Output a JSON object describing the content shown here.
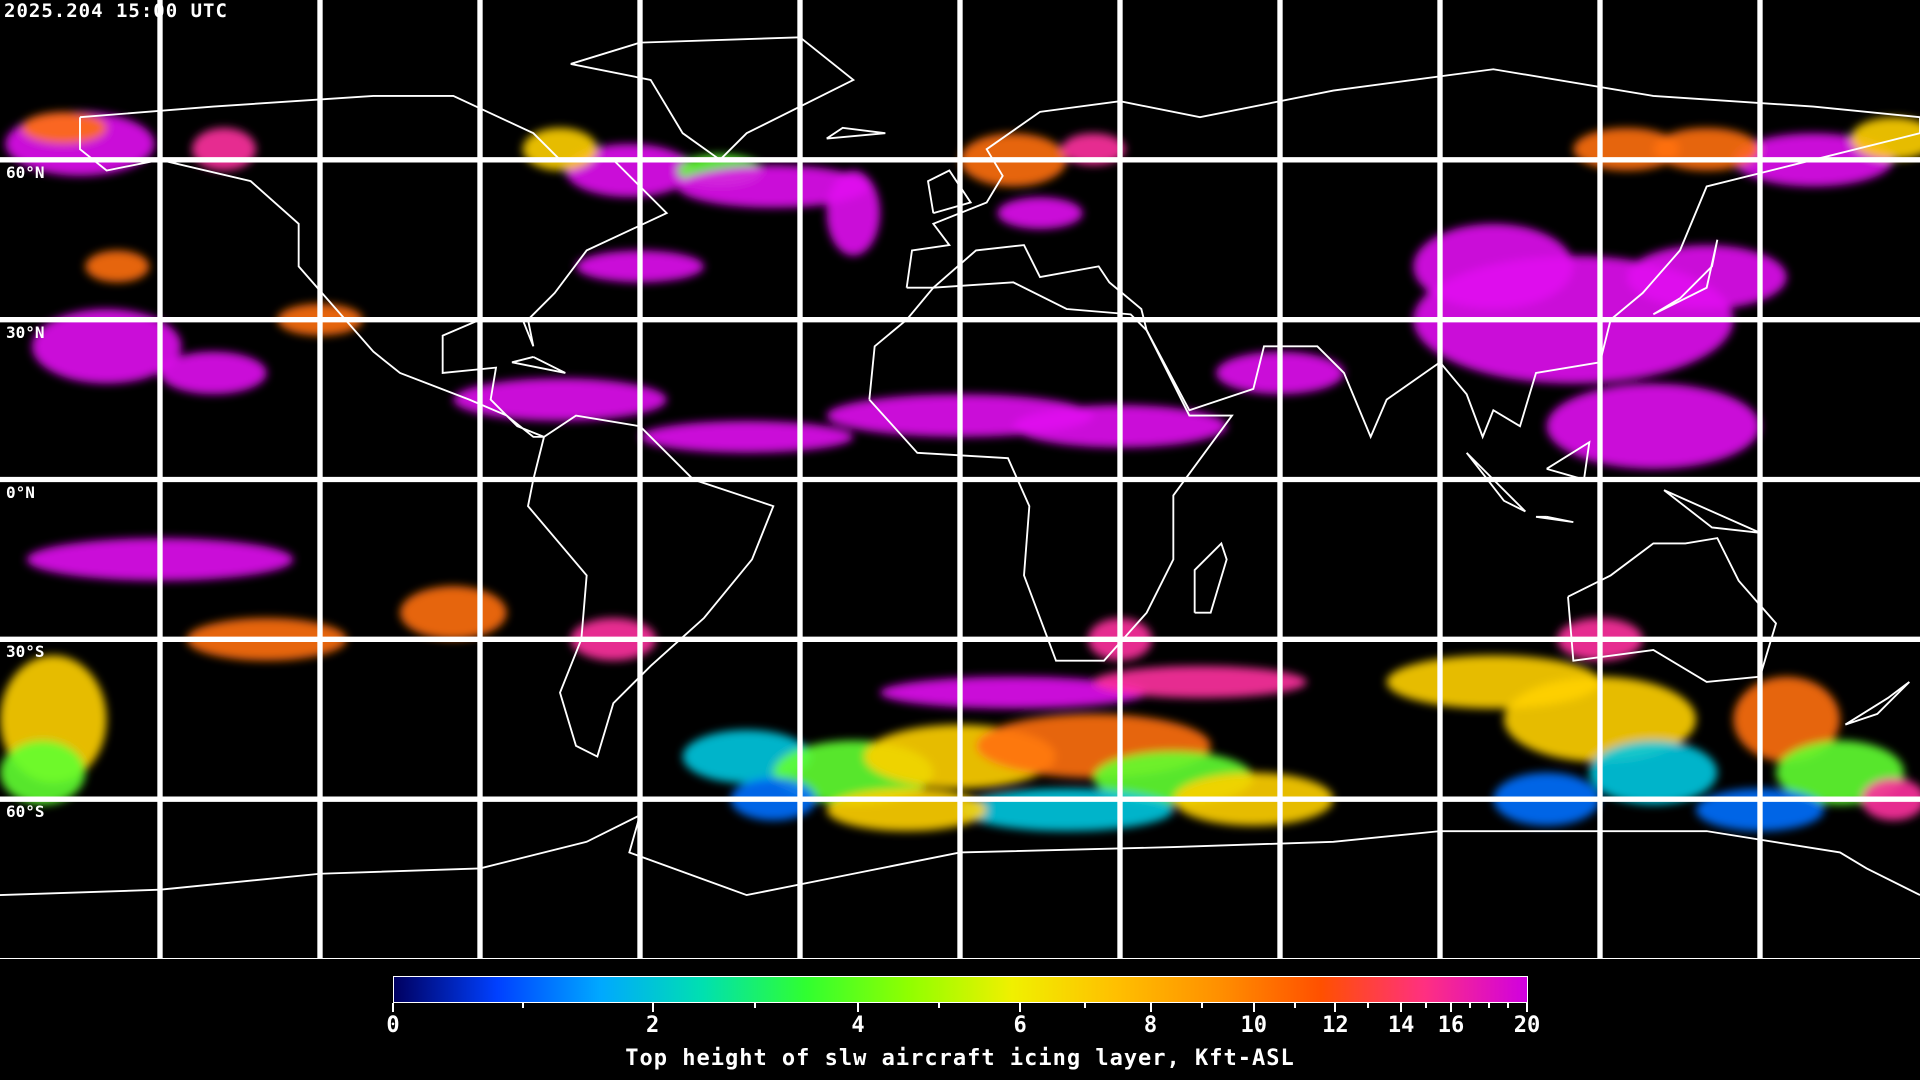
{
  "timestamp": "2025.204 15:00 UTC",
  "latitude_labels": [
    {
      "text": "60°N",
      "lat": 60
    },
    {
      "text": "30°N",
      "lat": 30
    },
    {
      "text": "0°N",
      "lat": 0
    },
    {
      "text": "30°S",
      "lat": -30
    },
    {
      "text": "60°S",
      "lat": -60
    }
  ],
  "projection": "equirectangular",
  "gridline_spacing_deg": 30,
  "colors": {
    "background": "#000000",
    "coastline": "#ffffff",
    "gridline": "#ffffff"
  },
  "colorbar": {
    "title": "Top height of slw aircraft icing layer, Kft-ASL",
    "min": 0,
    "max": 20,
    "major_ticks": [
      "0",
      "2",
      "4",
      "6",
      "8",
      "10",
      "12",
      "14",
      "16",
      "20"
    ],
    "minor_ticks": [
      1,
      3,
      5,
      7,
      9,
      11,
      13,
      15,
      17,
      18,
      19
    ],
    "colormap": [
      "#000060",
      "#0040ff",
      "#00a8ff",
      "#00e0b0",
      "#30ff30",
      "#90ff00",
      "#f0f000",
      "#ffc000",
      "#ff9000",
      "#ff5000",
      "#ff3080",
      "#d000e0"
    ]
  }
}
